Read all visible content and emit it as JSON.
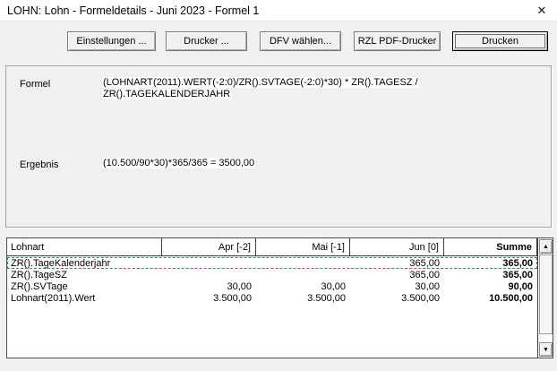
{
  "window": {
    "title": "LOHN: Lohn - Formeldetails - Juni 2023 - Formel 1",
    "close_icon": "✕"
  },
  "toolbar": {
    "buttons": [
      {
        "label": "Einstellungen ..."
      },
      {
        "label": "Drucker ..."
      },
      {
        "label": "DFV wählen..."
      },
      {
        "label": "RZL PDF-Drucker"
      },
      {
        "label": "Drucken"
      }
    ]
  },
  "formula_panel": {
    "formel_label": "Formel",
    "formel_line1": "(LOHNART(2011).WERT(-2:0)/ZR().SVTAGE(-2:0)*30) * ZR().TAGESZ /",
    "formel_line2": "ZR().TAGEKALENDERJAHR",
    "ergebnis_label": "Ergebnis",
    "ergebnis_value": "(10.500/90*30)*365/365 = 3500,00"
  },
  "table": {
    "columns": [
      "Lohnart",
      "Apr [-2]",
      "Mai [-1]",
      "Jun [0]",
      "Summe"
    ],
    "rows": [
      {
        "lohnart": "ZR().TageKalenderjahr",
        "apr": "",
        "mai": "",
        "jun": "365,00",
        "summe": "365,00",
        "selected": true
      },
      {
        "lohnart": "ZR().TageSZ",
        "apr": "",
        "mai": "",
        "jun": "365,00",
        "summe": "365,00",
        "selected": false
      },
      {
        "lohnart": "ZR().SVTage",
        "apr": "30,00",
        "mai": "30,00",
        "jun": "30,00",
        "summe": "90,00",
        "selected": false
      },
      {
        "lohnart": "Lohnart(2011).Wert",
        "apr": "3.500,00",
        "mai": "3.500,00",
        "jun": "3.500,00",
        "summe": "10.500,00",
        "selected": false
      }
    ]
  },
  "scrollbar": {
    "up_icon": "▲",
    "down_icon": "▼"
  },
  "colors": {
    "selection_green": "#00a84f",
    "titlebar_bg": "#ffffff",
    "dialog_bg": "#f0f0f0"
  }
}
